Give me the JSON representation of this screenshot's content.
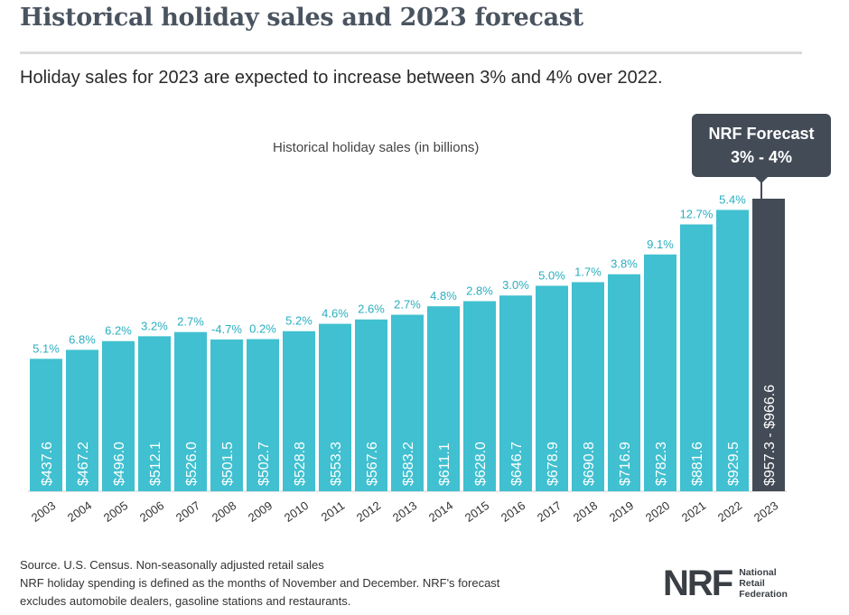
{
  "header": {
    "title": "Historical holiday sales and 2023 forecast",
    "subtitle": "Holiday sales for 2023 are expected to increase between 3% and 4% over 2022."
  },
  "callout": {
    "line1": "NRF Forecast",
    "line2": "3% - 4%"
  },
  "footer": {
    "line1": "Source. U.S. Census. Non-seasonally adjusted retail sales",
    "line2": "NRF holiday spending is defined as the months of November and December. NRF's forecast",
    "line3": "excludes automobile dealers, gasoline stations and restaurants."
  },
  "logo": {
    "mark": "NRF",
    "line1": "National",
    "line2": "Retail",
    "line3": "Federation"
  },
  "chart_data": {
    "type": "bar",
    "title": "Historical holiday sales (in billions)",
    "xlabel": "",
    "ylabel": "",
    "categories": [
      "2003",
      "2004",
      "2005",
      "2006",
      "2007",
      "2008",
      "2009",
      "2010",
      "2011",
      "2012",
      "2013",
      "2014",
      "2015",
      "2016",
      "2017",
      "2018",
      "2019",
      "2020",
      "2021",
      "2022",
      "2023"
    ],
    "values": [
      437.6,
      467.2,
      496.0,
      512.1,
      526.0,
      501.5,
      502.7,
      528.8,
      553.3,
      567.6,
      583.2,
      611.1,
      628.0,
      646.7,
      678.9,
      690.8,
      716.9,
      782.3,
      881.6,
      929.5,
      966.6
    ],
    "value_labels": [
      "$437.6",
      "$467.2",
      "$496.0",
      "$512.1",
      "$526.0",
      "$501.5",
      "$502.7",
      "$528.8",
      "$553.3",
      "$567.6",
      "$583.2",
      "$611.1",
      "$628.0",
      "$646.7",
      "$678.9",
      "$690.8",
      "$716.9",
      "$782.3",
      "$881.6",
      "$929.5",
      "$957.3 - $966.6"
    ],
    "growth_labels": [
      "5.1%",
      "6.8%",
      "6.2%",
      "3.2%",
      "2.7%",
      "-4.7%",
      "0.2%",
      "5.2%",
      "4.6%",
      "2.6%",
      "2.7%",
      "4.8%",
      "2.8%",
      "3.0%",
      "5.0%",
      "1.7%",
      "3.8%",
      "9.1%",
      "12.7%",
      "5.4%",
      ""
    ],
    "ylim": [
      0,
      966.6
    ],
    "grid": false,
    "colors": {
      "historical": "#40c0d0",
      "forecast": "#434b56",
      "growth_label": "#2aaebf",
      "value_label": "#ffffff",
      "tick_label": "#333333"
    }
  }
}
